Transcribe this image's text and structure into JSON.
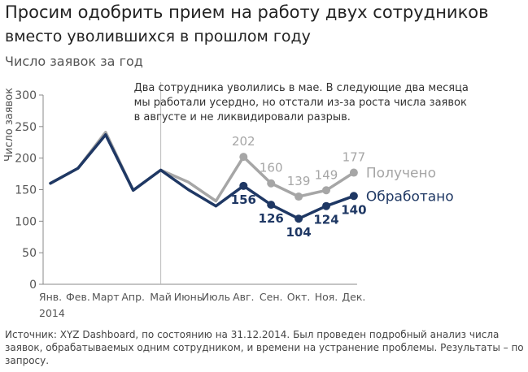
{
  "header": {
    "title": "Просим одобрить прием на работу двух сотрудников",
    "subtitle": "вместо уволившихся в прошлом году",
    "chart_label": "Число заявок за год"
  },
  "footnote": "Источник: XYZ Dashboard, по состоянию на 31.12.2014. Был проведен подробный анализ числа заявок, обрабатываемых одним сотрудником, и времени на устранение проблемы. Результаты – по запросу.",
  "colors": {
    "received": "#a6a6a6",
    "processed": "#1f3864",
    "axis": "#888888",
    "text": "#555555"
  },
  "chart_data": {
    "type": "line",
    "title": "Число заявок за год",
    "ylabel": "Число заявок",
    "xlabel": "",
    "year_label": "2014",
    "ylim": [
      0,
      300
    ],
    "yticks": [
      0,
      50,
      100,
      150,
      200,
      250,
      300
    ],
    "categories": [
      "Янв.",
      "Фев.",
      "Март",
      "Апр.",
      "Май",
      "Июнь",
      "Июль",
      "Авг.",
      "Сен.",
      "Окт.",
      "Ноя.",
      "Дек."
    ],
    "series": [
      {
        "name": "Получено",
        "values": [
          160,
          184,
          241,
          149,
          181,
          162,
          132,
          202,
          160,
          139,
          149,
          177
        ],
        "labeled_from_index": 7
      },
      {
        "name": "Обработано",
        "values": [
          160,
          184,
          237,
          149,
          181,
          150,
          124,
          156,
          126,
          104,
          124,
          140
        ],
        "labeled_from_index": 7
      }
    ],
    "annotation": {
      "after_category": "Май",
      "text_lines": [
        "Два сотрудника уволились в мае. В следующие два месяца",
        "мы работали усердно, но отстали из-за роста числа заявок",
        "в августе и не ликвидировали разрыв."
      ]
    },
    "grid": false
  }
}
